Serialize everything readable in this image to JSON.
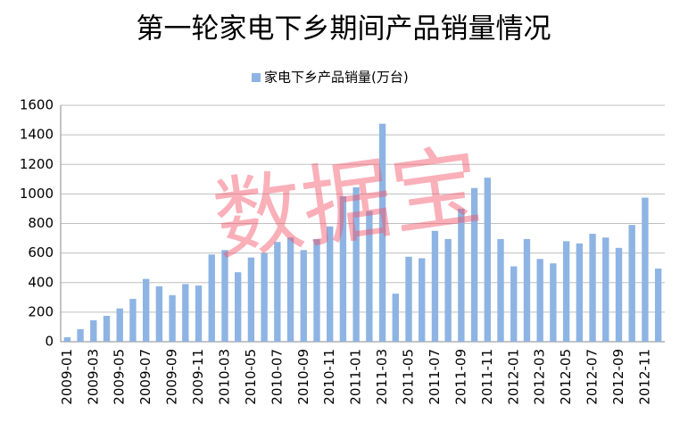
{
  "chart_data": {
    "type": "bar",
    "title": "第一轮家电下乡期间产品销量情况",
    "watermark": "数据宝",
    "categories": [
      "2009-01",
      null,
      "2009-03",
      null,
      "2009-05",
      null,
      "2009-07",
      null,
      "2009-09",
      null,
      "2009-11",
      null,
      "2010-03",
      null,
      "2010-05",
      null,
      "2010-07",
      null,
      "2010-09",
      null,
      "2010-11",
      null,
      "2011-01",
      null,
      "2011-03",
      null,
      "2011-05",
      null,
      "2011-07",
      null,
      "2011-09",
      null,
      "2011-11",
      null,
      "2012-01",
      null,
      "2012-03",
      null,
      "2012-05",
      null,
      "2012-07",
      null,
      "2012-09",
      null,
      "2012-11",
      null
    ],
    "series": [
      {
        "name": "家电下乡产品销量(万台)",
        "color": "#8eb4e3",
        "values": [
          30,
          85,
          145,
          175,
          225,
          290,
          425,
          375,
          315,
          390,
          380,
          590,
          620,
          470,
          570,
          600,
          675,
          705,
          620,
          695,
          780,
          985,
          1045,
          885,
          1475,
          325,
          575,
          565,
          750,
          695,
          900,
          1040,
          1110,
          695,
          510,
          695,
          560,
          530,
          680,
          665,
          730,
          705,
          635,
          790,
          975,
          495
        ]
      }
    ],
    "ylim": [
      0,
      1600
    ],
    "yticks": [
      0,
      200,
      400,
      600,
      800,
      1000,
      1200,
      1400,
      1600
    ],
    "grid": true,
    "legend": "top"
  }
}
